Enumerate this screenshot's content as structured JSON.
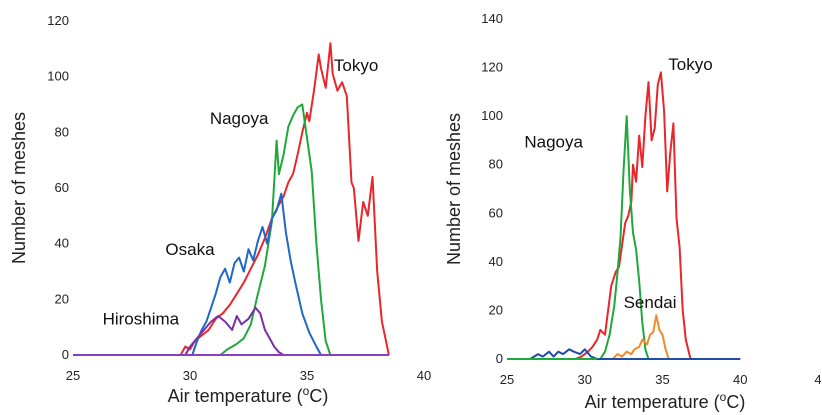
{
  "chart_data": [
    {
      "type": "line",
      "xlabel": "Air temperature (°C)",
      "xlabel_main": "Air temperature (",
      "xlabel_sup": "o",
      "xlabel_tail": "C)",
      "ylabel": "Number of meshes",
      "xlim": [
        25,
        40
      ],
      "ylim": [
        0,
        120
      ],
      "xticks": [
        "25",
        "30",
        "35",
        "40"
      ],
      "yticks": [
        "0",
        "20",
        "40",
        "60",
        "80",
        "100",
        "120"
      ],
      "grid": false,
      "legend": "none",
      "annotations": [
        {
          "text": "Tokyo",
          "x": 37.1,
          "y": 102
        },
        {
          "text": "Nagoya",
          "x": 32.1,
          "y": 83
        },
        {
          "text": "Osaka",
          "x": 30.0,
          "y": 36
        },
        {
          "text": "Hiroshima",
          "x": 27.9,
          "y": 11
        }
      ],
      "series": [
        {
          "name": "Tokyo",
          "color": "#e8262b",
          "points": [
            [
              29.6,
              0
            ],
            [
              29.8,
              3
            ],
            [
              30.0,
              2
            ],
            [
              30.2,
              5
            ],
            [
              30.5,
              7
            ],
            [
              30.8,
              9
            ],
            [
              31.1,
              13
            ],
            [
              31.4,
              15
            ],
            [
              31.7,
              18
            ],
            [
              32.0,
              22
            ],
            [
              32.3,
              26
            ],
            [
              32.6,
              31
            ],
            [
              32.9,
              36
            ],
            [
              33.2,
              42
            ],
            [
              33.5,
              49
            ],
            [
              33.8,
              54
            ],
            [
              34.0,
              57
            ],
            [
              34.2,
              62
            ],
            [
              34.4,
              65
            ],
            [
              34.6,
              72
            ],
            [
              34.8,
              80
            ],
            [
              35.0,
              87
            ],
            [
              35.1,
              84
            ],
            [
              35.3,
              95
            ],
            [
              35.5,
              108
            ],
            [
              35.6,
              103
            ],
            [
              35.8,
              96
            ],
            [
              36.0,
              112
            ],
            [
              36.1,
              101
            ],
            [
              36.3,
              95
            ],
            [
              36.5,
              98
            ],
            [
              36.7,
              93
            ],
            [
              36.9,
              62
            ],
            [
              37.0,
              60
            ],
            [
              37.2,
              41
            ],
            [
              37.4,
              55
            ],
            [
              37.6,
              50
            ],
            [
              37.8,
              64
            ],
            [
              38.0,
              30
            ],
            [
              38.2,
              12
            ],
            [
              38.4,
              4
            ],
            [
              38.5,
              0
            ]
          ]
        },
        {
          "name": "Nagoya",
          "color": "#20a83a",
          "points": [
            [
              31.3,
              0
            ],
            [
              31.6,
              2
            ],
            [
              32.0,
              4
            ],
            [
              32.3,
              6
            ],
            [
              32.6,
              11
            ],
            [
              32.9,
              22
            ],
            [
              33.2,
              32
            ],
            [
              33.5,
              48
            ],
            [
              33.7,
              77
            ],
            [
              33.8,
              65
            ],
            [
              34.0,
              72
            ],
            [
              34.2,
              82
            ],
            [
              34.4,
              86
            ],
            [
              34.6,
              89
            ],
            [
              34.8,
              90
            ],
            [
              35.0,
              78
            ],
            [
              35.2,
              66
            ],
            [
              35.4,
              40
            ],
            [
              35.6,
              20
            ],
            [
              35.8,
              5
            ],
            [
              36.0,
              0
            ]
          ]
        },
        {
          "name": "Osaka",
          "color": "#1f67c8",
          "points": [
            [
              30.1,
              0
            ],
            [
              30.3,
              5
            ],
            [
              30.5,
              9
            ],
            [
              30.7,
              12
            ],
            [
              30.9,
              17
            ],
            [
              31.1,
              22
            ],
            [
              31.3,
              28
            ],
            [
              31.5,
              31
            ],
            [
              31.7,
              26
            ],
            [
              31.9,
              33
            ],
            [
              32.1,
              35
            ],
            [
              32.3,
              30
            ],
            [
              32.5,
              38
            ],
            [
              32.7,
              34
            ],
            [
              32.9,
              41
            ],
            [
              33.1,
              46
            ],
            [
              33.3,
              40
            ],
            [
              33.5,
              49
            ],
            [
              33.7,
              52
            ],
            [
              33.9,
              58
            ],
            [
              34.1,
              44
            ],
            [
              34.3,
              34
            ],
            [
              34.5,
              26
            ],
            [
              34.8,
              15
            ],
            [
              35.1,
              8
            ],
            [
              35.4,
              3
            ],
            [
              35.6,
              0
            ]
          ]
        },
        {
          "name": "Hiroshima",
          "color": "#7b2fa6",
          "points": [
            [
              29.8,
              0
            ],
            [
              30.0,
              3
            ],
            [
              30.3,
              6
            ],
            [
              30.6,
              9
            ],
            [
              30.9,
              12
            ],
            [
              31.2,
              14
            ],
            [
              31.5,
              12
            ],
            [
              31.8,
              9
            ],
            [
              32.0,
              14
            ],
            [
              32.2,
              11
            ],
            [
              32.5,
              13
            ],
            [
              32.8,
              17
            ],
            [
              33.0,
              15
            ],
            [
              33.2,
              9
            ],
            [
              33.4,
              6
            ],
            [
              33.6,
              3
            ],
            [
              33.8,
              1
            ],
            [
              34.0,
              0
            ]
          ]
        },
        {
          "name": "",
          "color": "#8a3ec0",
          "points": [
            [
              25.0,
              0
            ],
            [
              38.5,
              0
            ]
          ]
        }
      ]
    },
    {
      "type": "line",
      "xlabel": "Air temperature (°C)",
      "xlabel_main": "Air temperature (",
      "xlabel_sup": "o",
      "xlabel_tail": "C)",
      "ylabel": "Number of meshes",
      "xlim": [
        25,
        45
      ],
      "ylim": [
        0,
        140
      ],
      "xticks": [
        "25",
        "30",
        "35",
        "40",
        "4"
      ],
      "yticks": [
        "0",
        "20",
        "40",
        "60",
        "80",
        "100",
        "120",
        "140"
      ],
      "grid": false,
      "legend": "none",
      "annotations": [
        {
          "text": "Tokyo",
          "x": 36.8,
          "y": 119
        },
        {
          "text": "Nagoya",
          "x": 28.0,
          "y": 87
        },
        {
          "text": "Sendai",
          "x": 34.2,
          "y": 21
        }
      ],
      "series": [
        {
          "name": "Tokyo",
          "color": "#e8262b",
          "points": [
            [
              29.4,
              0
            ],
            [
              29.8,
              1
            ],
            [
              30.2,
              3
            ],
            [
              30.5,
              5
            ],
            [
              30.8,
              8
            ],
            [
              31.0,
              12
            ],
            [
              31.3,
              10
            ],
            [
              31.5,
              20
            ],
            [
              31.7,
              30
            ],
            [
              32.0,
              36
            ],
            [
              32.2,
              38
            ],
            [
              32.4,
              47
            ],
            [
              32.6,
              56
            ],
            [
              32.8,
              59
            ],
            [
              33.0,
              65
            ],
            [
              33.1,
              80
            ],
            [
              33.3,
              73
            ],
            [
              33.5,
              92
            ],
            [
              33.7,
              79
            ],
            [
              33.9,
              100
            ],
            [
              34.1,
              114
            ],
            [
              34.3,
              90
            ],
            [
              34.5,
              95
            ],
            [
              34.7,
              113
            ],
            [
              34.9,
              118
            ],
            [
              35.1,
              102
            ],
            [
              35.3,
              69
            ],
            [
              35.5,
              85
            ],
            [
              35.7,
              97
            ],
            [
              35.9,
              58
            ],
            [
              36.1,
              46
            ],
            [
              36.3,
              20
            ],
            [
              36.5,
              8
            ],
            [
              36.8,
              0
            ]
          ]
        },
        {
          "name": "Nagoya",
          "color": "#20a83a",
          "points": [
            [
              31.0,
              0
            ],
            [
              31.3,
              3
            ],
            [
              31.6,
              10
            ],
            [
              31.9,
              22
            ],
            [
              32.1,
              35
            ],
            [
              32.3,
              50
            ],
            [
              32.5,
              78
            ],
            [
              32.7,
              100
            ],
            [
              32.9,
              70
            ],
            [
              33.1,
              52
            ],
            [
              33.3,
              45
            ],
            [
              33.5,
              32
            ],
            [
              33.7,
              15
            ],
            [
              33.9,
              4
            ],
            [
              34.1,
              0
            ]
          ]
        },
        {
          "name": "Sendai",
          "color": "#f08a2a",
          "points": [
            [
              31.8,
              0
            ],
            [
              32.1,
              2
            ],
            [
              32.4,
              1
            ],
            [
              32.7,
              3
            ],
            [
              33.0,
              2
            ],
            [
              33.2,
              4
            ],
            [
              33.5,
              5
            ],
            [
              33.7,
              8
            ],
            [
              34.0,
              6
            ],
            [
              34.2,
              10
            ],
            [
              34.4,
              11
            ],
            [
              34.6,
              18
            ],
            [
              34.8,
              12
            ],
            [
              35.0,
              10
            ],
            [
              35.2,
              4
            ],
            [
              35.4,
              0
            ]
          ]
        },
        {
          "name": "",
          "color": "#1f4fa0",
          "points": [
            [
              26.5,
              0
            ],
            [
              27.0,
              2
            ],
            [
              27.3,
              1
            ],
            [
              27.7,
              3
            ],
            [
              28.0,
              1
            ],
            [
              28.3,
              3
            ],
            [
              28.6,
              2
            ],
            [
              29.0,
              4
            ],
            [
              29.3,
              3
            ],
            [
              29.7,
              2
            ],
            [
              30.0,
              4
            ],
            [
              30.4,
              1
            ],
            [
              30.8,
              0
            ],
            [
              40.0,
              0
            ]
          ]
        },
        {
          "name": "",
          "color": "#20a83a",
          "points": [
            [
              25.0,
              0
            ],
            [
              30.8,
              0
            ]
          ]
        }
      ]
    }
  ]
}
